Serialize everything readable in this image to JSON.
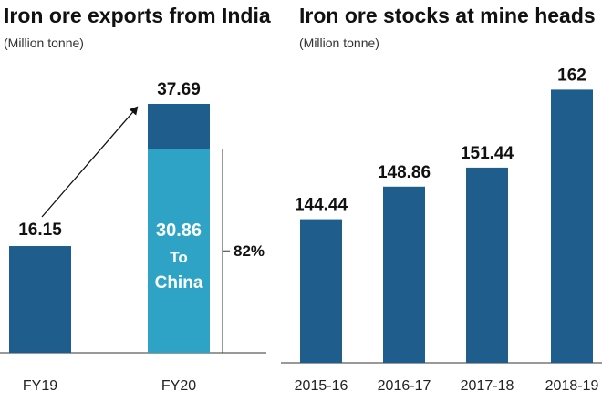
{
  "colors": {
    "bar": "#1f5e8c",
    "highlight": "#2ea3c5",
    "axis": "#333333",
    "text": "#111111"
  },
  "chart_data": [
    {
      "type": "bar",
      "title": "Iron ore exports from India",
      "subtitle": "(Million tonne)",
      "categories": [
        "FY19",
        "FY20"
      ],
      "values": [
        16.15,
        37.69
      ],
      "value_labels": [
        "16.15",
        "37.69"
      ],
      "segment": {
        "category": "FY20",
        "value": 30.86,
        "value_label": "30.86",
        "text_line1": "To",
        "text_line2": "China",
        "share_label": "82%"
      },
      "annotation": "arrow from FY19 to FY20",
      "ylim": [
        0,
        45
      ]
    },
    {
      "type": "bar",
      "title": "Iron ore stocks at mine heads",
      "subtitle": "(Million tonne)",
      "categories": [
        "2015-16",
        "2016-17",
        "2017-18",
        "2018-19"
      ],
      "values": [
        144.44,
        148.86,
        151.44,
        162
      ],
      "value_labels": [
        "144.44",
        "148.86",
        "151.44",
        "162"
      ],
      "ylim": [
        125,
        166
      ]
    }
  ]
}
